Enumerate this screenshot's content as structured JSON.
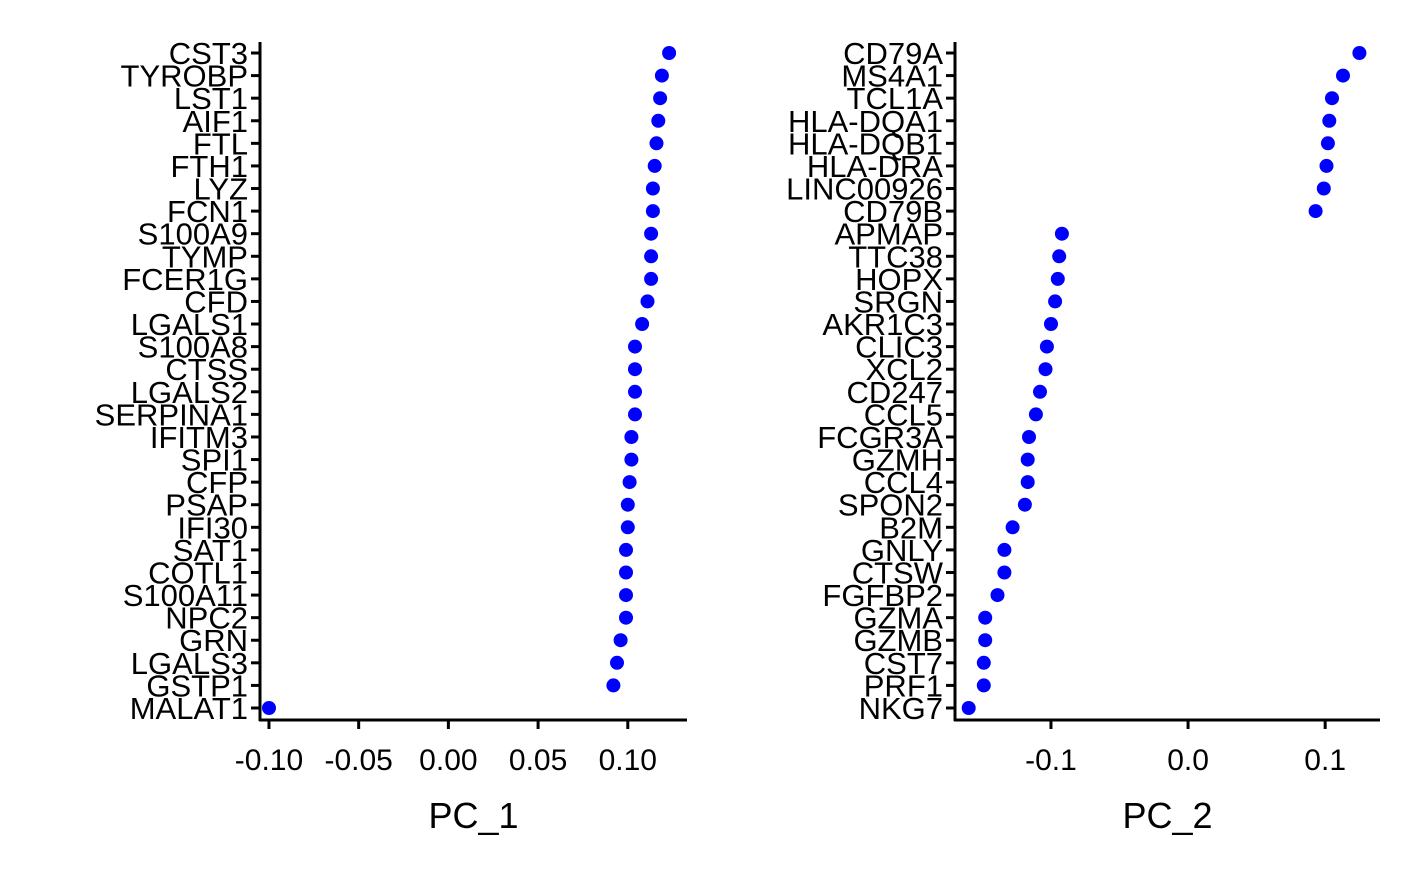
{
  "chart_data": [
    {
      "type": "scatter",
      "xlabel": "PC_1",
      "ylabel": "",
      "xlim": [
        -0.105,
        0.133
      ],
      "xticks": [
        -0.1,
        -0.05,
        0.0,
        0.05,
        0.1
      ],
      "xtick_labels": [
        "-0.10",
        "-0.05",
        "0.00",
        "0.05",
        "0.10"
      ],
      "grid": false,
      "legend": "none",
      "point_color": "#0000FF",
      "categories": [
        "CST3",
        "TYROBP",
        "LST1",
        "AIF1",
        "FTL",
        "FTH1",
        "LYZ",
        "FCN1",
        "S100A9",
        "TYMP",
        "FCER1G",
        "CFD",
        "LGALS1",
        "S100A8",
        "CTSS",
        "LGALS2",
        "SERPINA1",
        "IFITM3",
        "SPI1",
        "CFP",
        "PSAP",
        "IFI30",
        "SAT1",
        "COTL1",
        "S100A11",
        "NPC2",
        "GRN",
        "LGALS3",
        "GSTP1",
        "MALAT1"
      ],
      "values": [
        0.123,
        0.119,
        0.118,
        0.117,
        0.116,
        0.115,
        0.114,
        0.114,
        0.113,
        0.113,
        0.113,
        0.111,
        0.108,
        0.104,
        0.104,
        0.104,
        0.104,
        0.102,
        0.102,
        0.101,
        0.1,
        0.1,
        0.099,
        0.099,
        0.099,
        0.099,
        0.096,
        0.094,
        0.092,
        -0.1
      ]
    },
    {
      "type": "scatter",
      "xlabel": "PC_2",
      "ylabel": "",
      "xlim": [
        -0.17,
        0.14
      ],
      "xticks": [
        -0.1,
        0.0,
        0.1
      ],
      "xtick_labels": [
        "-0.1",
        "0.0",
        "0.1"
      ],
      "grid": false,
      "legend": "none",
      "point_color": "#0000FF",
      "categories": [
        "CD79A",
        "MS4A1",
        "TCL1A",
        "HLA-DQA1",
        "HLA-DQB1",
        "HLA-DRA",
        "LINC00926",
        "CD79B",
        "APMAP",
        "TTC38",
        "HOPX",
        "SRGN",
        "AKR1C3",
        "CLIC3",
        "XCL2",
        "CD247",
        "CCL5",
        "FCGR3A",
        "GZMH",
        "CCL4",
        "SPON2",
        "B2M",
        "GNLY",
        "CTSW",
        "FGFBP2",
        "GZMA",
        "GZMB",
        "CST7",
        "PRF1",
        "NKG7"
      ],
      "values": [
        0.125,
        0.113,
        0.105,
        0.103,
        0.102,
        0.101,
        0.099,
        0.093,
        -0.092,
        -0.094,
        -0.095,
        -0.097,
        -0.1,
        -0.103,
        -0.104,
        -0.108,
        -0.111,
        -0.116,
        -0.117,
        -0.117,
        -0.119,
        -0.128,
        -0.134,
        -0.134,
        -0.139,
        -0.148,
        -0.148,
        -0.149,
        -0.149,
        -0.16
      ]
    }
  ]
}
